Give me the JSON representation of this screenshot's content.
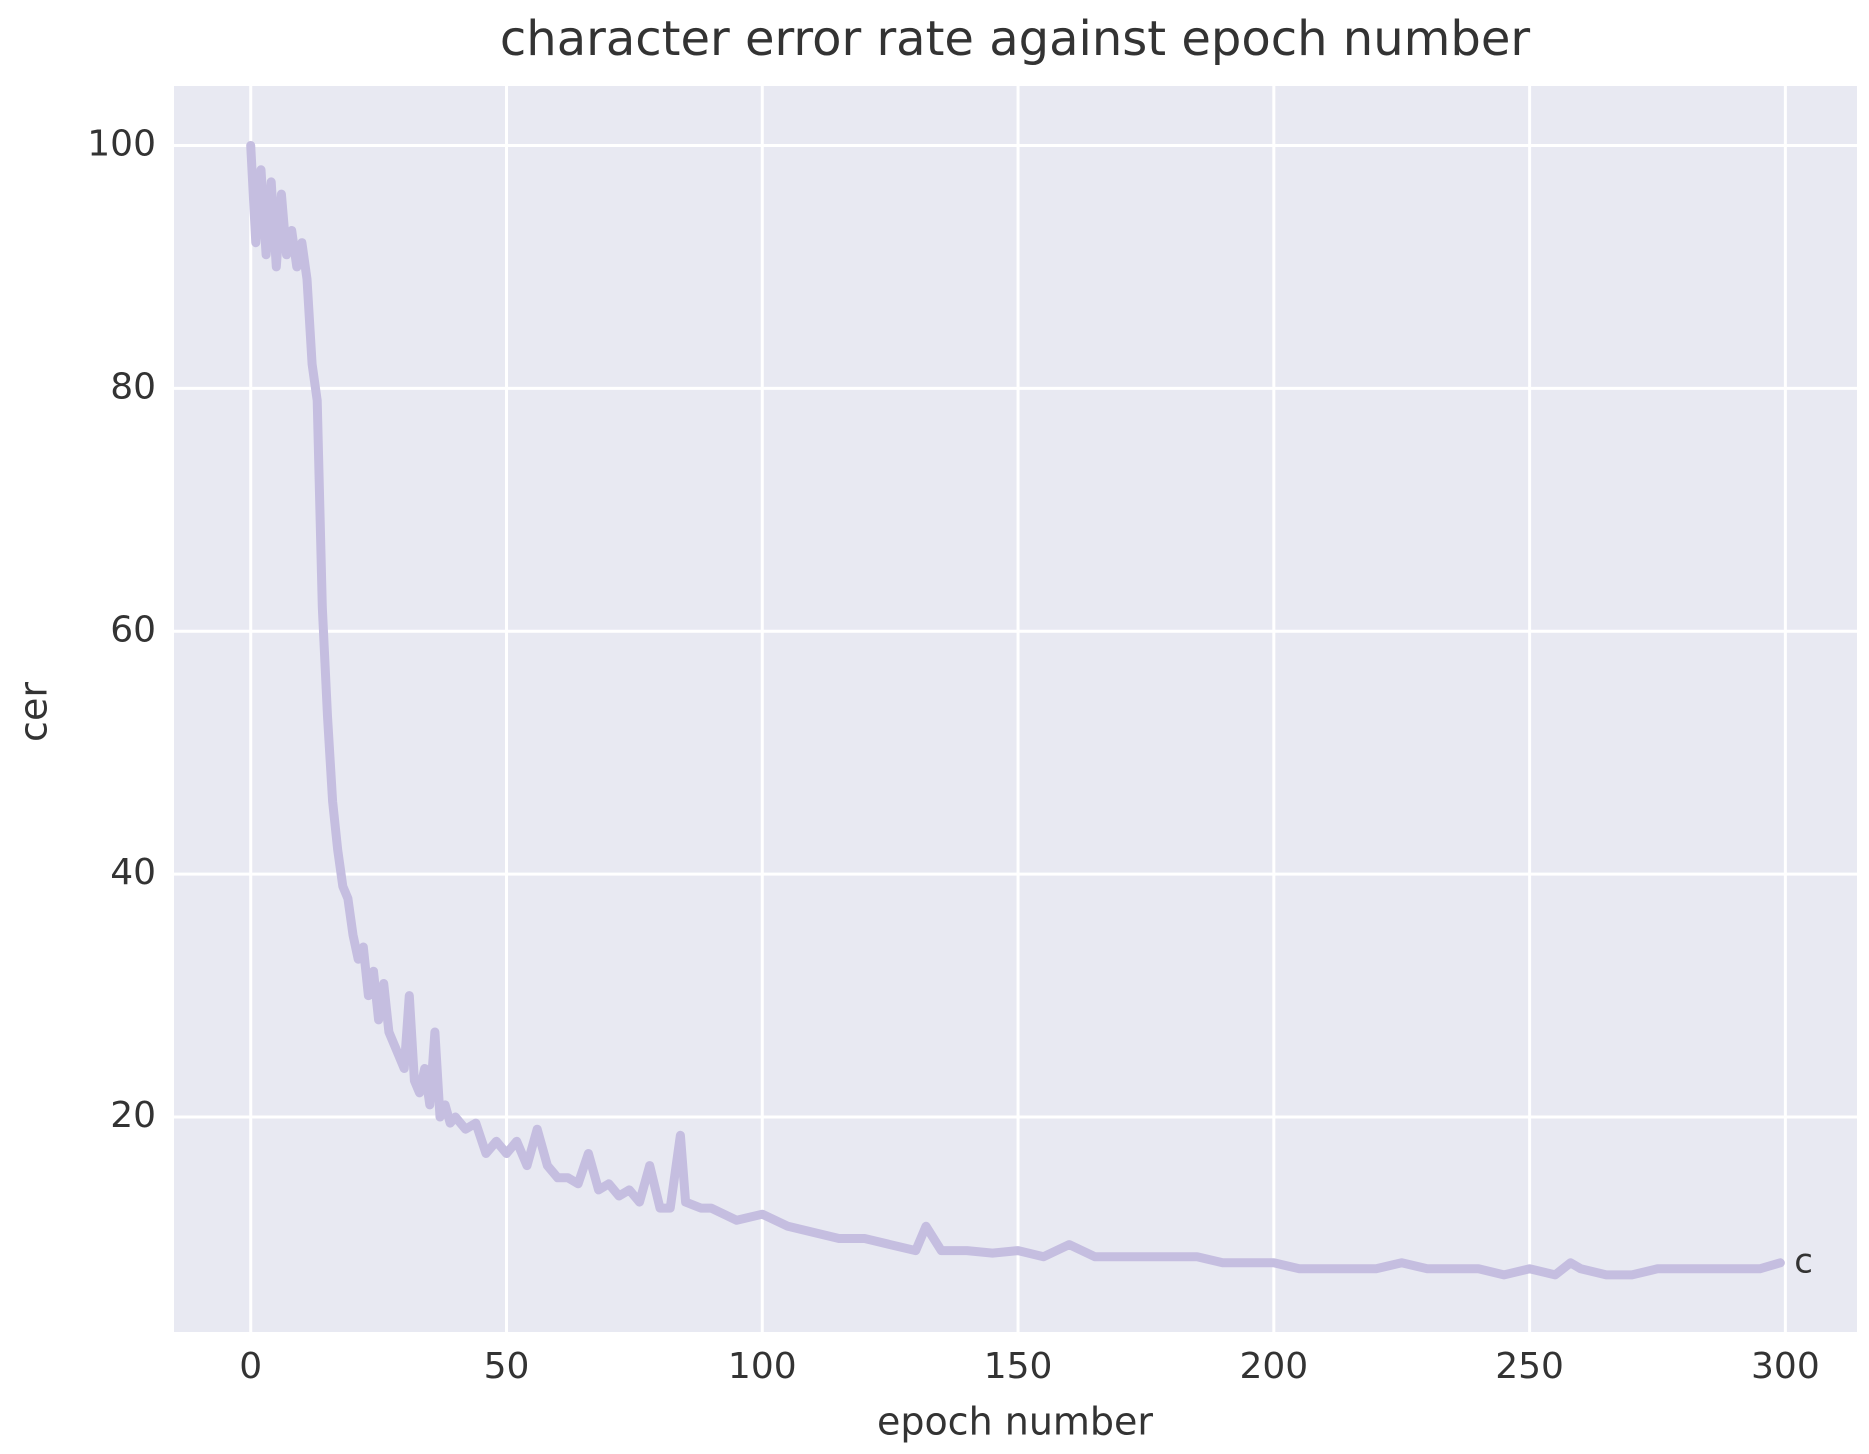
{
  "chart_data": {
    "type": "line",
    "title": "character error rate against epoch number",
    "x_label": "epoch number",
    "y_label": "cer",
    "annotation": "c",
    "x": [
      0,
      1,
      2,
      3,
      4,
      5,
      6,
      7,
      8,
      9,
      10,
      11,
      12,
      13,
      14,
      15,
      16,
      17,
      18,
      19,
      20,
      21,
      22,
      23,
      24,
      25,
      26,
      27,
      28,
      29,
      30,
      31,
      32,
      33,
      34,
      35,
      36,
      37,
      38,
      39,
      40,
      42,
      44,
      46,
      48,
      50,
      52,
      54,
      56,
      58,
      60,
      62,
      64,
      66,
      68,
      70,
      72,
      74,
      76,
      78,
      80,
      82,
      84,
      85,
      88,
      90,
      95,
      100,
      105,
      110,
      115,
      120,
      125,
      130,
      132,
      135,
      140,
      145,
      150,
      155,
      160,
      165,
      170,
      175,
      180,
      185,
      190,
      195,
      200,
      205,
      210,
      215,
      220,
      225,
      230,
      235,
      240,
      245,
      250,
      255,
      258,
      260,
      265,
      270,
      275,
      280,
      285,
      290,
      295,
      299
    ],
    "series": [
      {
        "name": "c",
        "color": "#c5bee0",
        "values": [
          100,
          92,
          98,
          91,
          97,
          90,
          96,
          91,
          93,
          90,
          92,
          89,
          82,
          79,
          62,
          53,
          46,
          42,
          39,
          38,
          35,
          33,
          34,
          30,
          32,
          28,
          31,
          27,
          26,
          25,
          24,
          30,
          23,
          22,
          24,
          21,
          27,
          20,
          21,
          19.5,
          20,
          19,
          19.5,
          17,
          18,
          17,
          18,
          16,
          19,
          16,
          15,
          15,
          14.5,
          17,
          14,
          14.5,
          13.5,
          14,
          13,
          16,
          12.5,
          12.5,
          18.5,
          13,
          12.5,
          12.5,
          11.5,
          12,
          11,
          10.5,
          10,
          10,
          9.5,
          9,
          11,
          9,
          9,
          8.8,
          9,
          8.5,
          9.5,
          8.5,
          8.5,
          8.5,
          8.5,
          8.5,
          8,
          8,
          8,
          7.5,
          7.5,
          7.5,
          7.5,
          8,
          7.5,
          7.5,
          7.5,
          7,
          7.5,
          7,
          8,
          7.5,
          7,
          7,
          7.5,
          7.5,
          7.5,
          7.5,
          7.5,
          8
        ]
      }
    ],
    "xlim": [
      -15,
      314
    ],
    "ylim": [
      2.3,
      104.9
    ],
    "xticks": [
      0,
      50,
      100,
      150,
      200,
      250,
      300
    ],
    "yticks": [
      20,
      40,
      60,
      80,
      100
    ],
    "grid": true,
    "background": "#e8e9f2"
  }
}
